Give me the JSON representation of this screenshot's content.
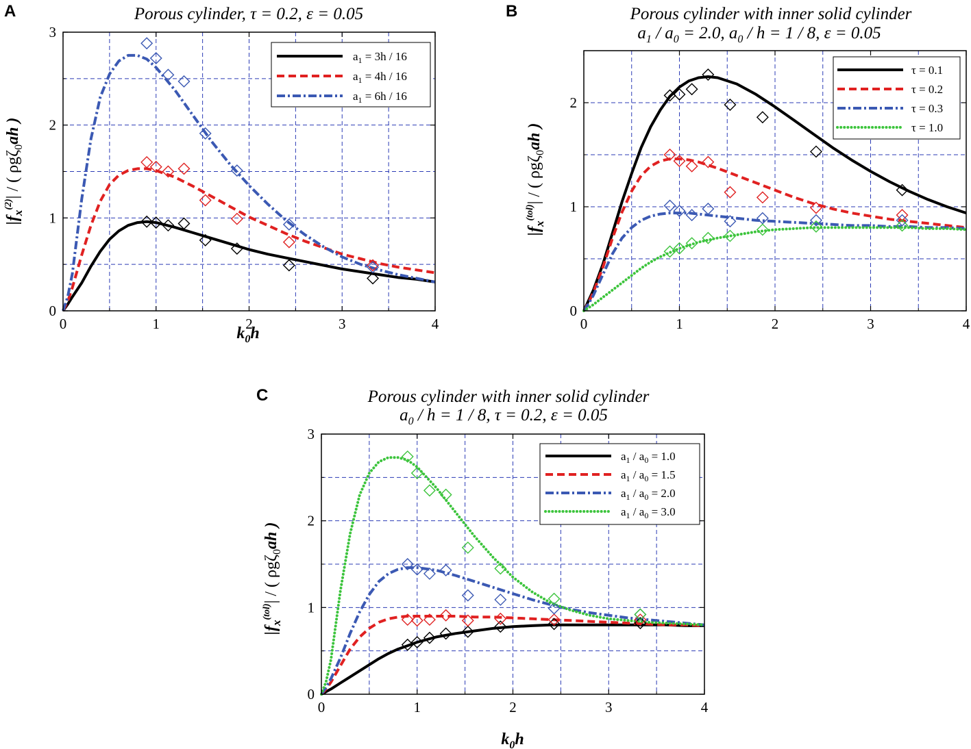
{
  "chart_data": [
    {
      "panel": "A",
      "type": "line",
      "title": "Porous cylinder, τ = 0.2, ε = 0.05",
      "xlabel": "k0h",
      "ylabel": "|fx(2)| / (ρgζ0ah)",
      "xlim": [
        0,
        4
      ],
      "ylim": [
        0,
        3
      ],
      "xticks": [
        0,
        1,
        2,
        3,
        4
      ],
      "yticks": [
        0,
        1,
        2,
        3
      ],
      "grid": true,
      "legend_position": "top-right",
      "x": [
        0.05,
        0.1,
        0.2,
        0.3,
        0.4,
        0.5,
        0.6,
        0.7,
        0.8,
        0.9,
        1.0,
        1.2,
        1.4,
        1.6,
        1.8,
        2.0,
        2.2,
        2.4,
        2.6,
        2.8,
        3.0,
        3.2,
        3.4,
        3.6,
        3.8,
        4.0
      ],
      "series": [
        {
          "name": "a1 = 3h / 16",
          "color": "#000000",
          "style": "solid",
          "values": [
            0.07,
            0.15,
            0.3,
            0.48,
            0.64,
            0.77,
            0.86,
            0.92,
            0.95,
            0.96,
            0.95,
            0.9,
            0.84,
            0.78,
            0.72,
            0.66,
            0.61,
            0.57,
            0.53,
            0.49,
            0.45,
            0.42,
            0.39,
            0.36,
            0.34,
            0.31
          ],
          "markers_x": [
            0.9,
            1.0,
            1.13,
            1.3,
            1.53,
            1.87,
            2.43,
            3.33
          ],
          "markers_y": [
            0.96,
            0.95,
            0.92,
            0.94,
            0.76,
            0.67,
            0.49,
            0.35
          ]
        },
        {
          "name": "a1 = 4h / 16",
          "color": "#e02121",
          "style": "dashed",
          "values": [
            0.1,
            0.25,
            0.6,
            0.92,
            1.18,
            1.36,
            1.46,
            1.51,
            1.53,
            1.53,
            1.51,
            1.44,
            1.34,
            1.23,
            1.12,
            1.01,
            0.92,
            0.83,
            0.75,
            0.68,
            0.61,
            0.56,
            0.51,
            0.47,
            0.44,
            0.41
          ],
          "markers_x": [
            0.9,
            1.0,
            1.13,
            1.3,
            1.53,
            1.87,
            2.43,
            3.33
          ],
          "markers_y": [
            1.6,
            1.55,
            1.5,
            1.53,
            1.19,
            0.99,
            0.74,
            0.49
          ]
        },
        {
          "name": "a1 = 6h / 16",
          "color": "#3b59b3",
          "style": "dashdot",
          "values": [
            0.15,
            0.4,
            1.2,
            1.85,
            2.3,
            2.55,
            2.69,
            2.75,
            2.75,
            2.71,
            2.62,
            2.38,
            2.1,
            1.82,
            1.57,
            1.35,
            1.15,
            0.97,
            0.82,
            0.69,
            0.58,
            0.5,
            0.44,
            0.39,
            0.35,
            0.31
          ],
          "markers_x": [
            0.9,
            1.0,
            1.13,
            1.3,
            1.53,
            1.87,
            2.43,
            3.33
          ],
          "markers_y": [
            2.88,
            2.72,
            2.54,
            2.47,
            1.91,
            1.51,
            0.93,
            0.47
          ]
        }
      ]
    },
    {
      "panel": "B",
      "type": "line",
      "title": "Porous cylinder with inner solid cylinder",
      "subtitle": "a1 / a0 = 2.0, a0 / h = 1 / 8, ε = 0.05",
      "xlabel": "k0h",
      "ylabel": "|fx(tol)| / (ρgζ0ah)",
      "xlim": [
        0,
        4
      ],
      "ylim": [
        0,
        2.5
      ],
      "xticks": [
        0,
        1,
        2,
        3,
        4
      ],
      "yticks": [
        0,
        1,
        2
      ],
      "grid": true,
      "legend_position": "top-right",
      "x": [
        0.05,
        0.1,
        0.2,
        0.3,
        0.4,
        0.5,
        0.6,
        0.7,
        0.8,
        0.9,
        1.0,
        1.1,
        1.2,
        1.3,
        1.4,
        1.6,
        1.8,
        2.0,
        2.2,
        2.4,
        2.6,
        2.8,
        3.0,
        3.2,
        3.4,
        3.6,
        3.8,
        4.0
      ],
      "series": [
        {
          "name": "τ = 0.1",
          "color": "#000000",
          "style": "solid",
          "values": [
            0.1,
            0.2,
            0.45,
            0.75,
            1.05,
            1.32,
            1.57,
            1.77,
            1.93,
            2.06,
            2.15,
            2.21,
            2.24,
            2.25,
            2.24,
            2.18,
            2.08,
            1.96,
            1.83,
            1.7,
            1.57,
            1.45,
            1.34,
            1.24,
            1.15,
            1.07,
            1.0,
            0.94
          ],
          "markers_x": [
            0.9,
            1.0,
            1.13,
            1.3,
            1.53,
            1.87,
            2.43,
            3.33
          ],
          "markers_y": [
            2.07,
            2.08,
            2.13,
            2.27,
            1.98,
            1.86,
            1.53,
            1.16
          ]
        },
        {
          "name": "τ = 0.2",
          "color": "#e02121",
          "style": "dashed",
          "values": [
            0.08,
            0.18,
            0.42,
            0.7,
            0.95,
            1.15,
            1.3,
            1.39,
            1.44,
            1.46,
            1.46,
            1.45,
            1.43,
            1.4,
            1.37,
            1.3,
            1.23,
            1.16,
            1.09,
            1.03,
            0.98,
            0.94,
            0.91,
            0.88,
            0.86,
            0.84,
            0.82,
            0.8
          ],
          "markers_x": [
            0.9,
            1.0,
            1.13,
            1.3,
            1.53,
            1.87,
            2.43,
            3.33
          ],
          "markers_y": [
            1.5,
            1.44,
            1.39,
            1.43,
            1.14,
            1.09,
            0.99,
            0.92
          ]
        },
        {
          "name": "τ = 0.3",
          "color": "#3b59b3",
          "style": "dashdot",
          "values": [
            0.07,
            0.15,
            0.35,
            0.55,
            0.7,
            0.8,
            0.87,
            0.91,
            0.93,
            0.94,
            0.94,
            0.94,
            0.93,
            0.92,
            0.91,
            0.89,
            0.87,
            0.86,
            0.85,
            0.84,
            0.83,
            0.82,
            0.82,
            0.81,
            0.81,
            0.8,
            0.8,
            0.79
          ],
          "markers_x": [
            0.9,
            1.0,
            1.13,
            1.3,
            1.53,
            1.87,
            2.43,
            3.33
          ],
          "markers_y": [
            1.01,
            0.96,
            0.92,
            0.98,
            0.86,
            0.89,
            0.87,
            0.87
          ]
        },
        {
          "name": "τ = 1.0",
          "color": "#3cc43c",
          "style": "dotted",
          "values": [
            0.03,
            0.06,
            0.13,
            0.2,
            0.27,
            0.34,
            0.41,
            0.47,
            0.52,
            0.56,
            0.6,
            0.63,
            0.66,
            0.68,
            0.7,
            0.73,
            0.76,
            0.78,
            0.79,
            0.8,
            0.8,
            0.8,
            0.8,
            0.8,
            0.8,
            0.79,
            0.79,
            0.78
          ],
          "markers_x": [
            0.9,
            1.0,
            1.13,
            1.3,
            1.53,
            1.87,
            2.43,
            3.33
          ],
          "markers_y": [
            0.57,
            0.6,
            0.65,
            0.7,
            0.72,
            0.78,
            0.81,
            0.82
          ]
        }
      ]
    },
    {
      "panel": "C",
      "type": "line",
      "title": "Porous cylinder with inner solid cylinder",
      "subtitle": "a0 / h = 1 / 8, τ = 0.2, ε = 0.05",
      "xlabel": "k0h",
      "ylabel": "|fx(tol)| / (ρgζ0ah)",
      "xlim": [
        0,
        4
      ],
      "ylim": [
        0,
        3
      ],
      "xticks": [
        0,
        1,
        2,
        3,
        4
      ],
      "yticks": [
        0,
        1,
        2,
        3
      ],
      "grid": true,
      "legend_position": "top-right",
      "x": [
        0.05,
        0.1,
        0.2,
        0.3,
        0.4,
        0.5,
        0.6,
        0.7,
        0.8,
        0.9,
        1.0,
        1.2,
        1.4,
        1.6,
        1.8,
        2.0,
        2.2,
        2.4,
        2.6,
        2.8,
        3.0,
        3.2,
        3.4,
        3.6,
        3.8,
        4.0
      ],
      "series": [
        {
          "name": "a1 / a0 = 1.0",
          "color": "#000000",
          "style": "solid",
          "values": [
            0.03,
            0.06,
            0.13,
            0.2,
            0.27,
            0.34,
            0.41,
            0.47,
            0.52,
            0.56,
            0.6,
            0.66,
            0.7,
            0.73,
            0.76,
            0.78,
            0.79,
            0.8,
            0.8,
            0.8,
            0.8,
            0.8,
            0.8,
            0.8,
            0.79,
            0.79
          ],
          "markers_x": [
            0.9,
            1.0,
            1.13,
            1.3,
            1.53,
            1.87,
            2.43,
            3.33
          ],
          "markers_y": [
            0.57,
            0.6,
            0.65,
            0.7,
            0.72,
            0.78,
            0.81,
            0.82
          ]
        },
        {
          "name": "a1 / a0 = 1.5",
          "color": "#e02121",
          "style": "dashed",
          "values": [
            0.06,
            0.14,
            0.33,
            0.52,
            0.66,
            0.76,
            0.83,
            0.87,
            0.89,
            0.9,
            0.9,
            0.9,
            0.9,
            0.89,
            0.89,
            0.88,
            0.87,
            0.86,
            0.85,
            0.84,
            0.83,
            0.82,
            0.81,
            0.8,
            0.8,
            0.79
          ],
          "markers_x": [
            0.9,
            1.0,
            1.13,
            1.3,
            1.53,
            1.87,
            2.43,
            3.33
          ],
          "markers_y": [
            0.86,
            0.85,
            0.86,
            0.91,
            0.85,
            0.87,
            0.86,
            0.86
          ]
        },
        {
          "name": "a1 / a0 = 2.0",
          "color": "#3b59b3",
          "style": "dashdot",
          "values": [
            0.08,
            0.18,
            0.42,
            0.7,
            0.95,
            1.15,
            1.3,
            1.39,
            1.44,
            1.46,
            1.46,
            1.43,
            1.37,
            1.3,
            1.23,
            1.16,
            1.09,
            1.03,
            0.98,
            0.94,
            0.91,
            0.88,
            0.86,
            0.84,
            0.82,
            0.8
          ],
          "markers_x": [
            0.9,
            1.0,
            1.13,
            1.3,
            1.53,
            1.87,
            2.43,
            3.33
          ],
          "markers_y": [
            1.5,
            1.44,
            1.39,
            1.43,
            1.14,
            1.09,
            0.99,
            0.92
          ]
        },
        {
          "name": "a1 / a0 = 3.0",
          "color": "#3cc43c",
          "style": "dotted",
          "values": [
            0.15,
            0.4,
            1.2,
            1.85,
            2.3,
            2.55,
            2.68,
            2.73,
            2.73,
            2.7,
            2.62,
            2.38,
            2.1,
            1.82,
            1.57,
            1.35,
            1.18,
            1.05,
            0.97,
            0.91,
            0.87,
            0.85,
            0.83,
            0.82,
            0.81,
            0.8
          ],
          "markers_x": [
            0.9,
            1.0,
            1.13,
            1.3,
            1.53,
            1.87,
            2.43,
            3.33
          ],
          "markers_y": [
            2.74,
            2.55,
            2.35,
            2.3,
            1.69,
            1.45,
            1.1,
            0.92
          ]
        }
      ]
    }
  ],
  "figure": {
    "panels": [
      {
        "letter": "A",
        "title": "Porous cylinder, τ = 0.2, ε = 0.05",
        "ylabel": {
          "main": "|f",
          "sub": "x",
          "sup": "(2)",
          "rest1": "| / ( ρgζ",
          "sub2": "0",
          "rest2": "ah )"
        },
        "xlabel": {
          "k": "k",
          "sub": "0",
          "h": "h"
        },
        "legend": [
          {
            "pre": "a",
            "sub": "1",
            "rest": " = 3h / 16"
          },
          {
            "pre": "a",
            "sub": "1",
            "rest": " = 4h / 16"
          },
          {
            "pre": "a",
            "sub": "1",
            "rest": " = 6h / 16"
          }
        ]
      },
      {
        "letter": "B",
        "title1": "Porous cylinder with inner solid cylinder",
        "title2": {
          "a1": "a",
          "s1": "1",
          "r1": " / a",
          "s2": "0",
          "r2": " = 2.0, a",
          "s3": "0",
          "r3": " / h = 1 / 8, ε = 0.05"
        },
        "ylabel": {
          "main": "|f",
          "sub": "x",
          "sup": "(tol)",
          "rest1": "| / ( ρgζ",
          "sub2": "0",
          "rest2": "ah )"
        },
        "xlabel": {
          "k": "k",
          "sub": "0",
          "h": "h"
        },
        "legend": [
          {
            "pre": "τ = 0.1",
            "sub": "",
            "rest": ""
          },
          {
            "pre": "τ = 0.2",
            "sub": "",
            "rest": ""
          },
          {
            "pre": "τ = 0.3",
            "sub": "",
            "rest": ""
          },
          {
            "pre": "τ = 1.0",
            "sub": "",
            "rest": ""
          }
        ]
      },
      {
        "letter": "C",
        "title1": "Porous cylinder with inner solid cylinder",
        "title2": {
          "a1": "a",
          "s1": "0",
          "r1": " / h = 1 / 8, τ = 0.2, ε = 0.05"
        },
        "ylabel": {
          "main": "|f",
          "sub": "x",
          "sup": "(tol)",
          "rest1": "| / ( ρgζ",
          "sub2": "0",
          "rest2": "ah )"
        },
        "xlabel": {
          "k": "k",
          "sub": "0",
          "h": "h"
        },
        "legend": [
          {
            "pre": "a",
            "sub": "1",
            "rest": " / a",
            "sub2": "0",
            "rest2": " = 1.0"
          },
          {
            "pre": "a",
            "sub": "1",
            "rest": " / a",
            "sub2": "0",
            "rest2": " = 1.5"
          },
          {
            "pre": "a",
            "sub": "1",
            "rest": " / a",
            "sub2": "0",
            "rest2": " = 2.0"
          },
          {
            "pre": "a",
            "sub": "1",
            "rest": " / a",
            "sub2": "0",
            "rest2": " = 3.0"
          }
        ]
      }
    ]
  }
}
